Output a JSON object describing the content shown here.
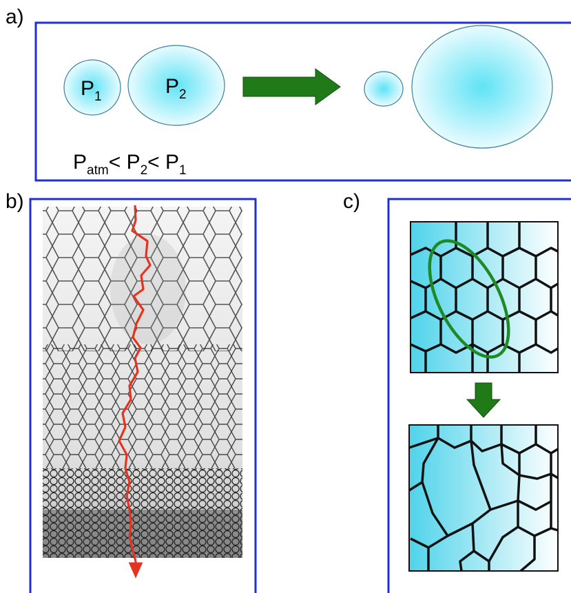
{
  "panels": {
    "a": {
      "label": "a)",
      "bubble1": {
        "base": "P",
        "sub": "1"
      },
      "bubble2": {
        "base": "P",
        "sub": "2"
      },
      "relation": {
        "p_atm": "P",
        "p_atm_sub": "atm",
        "lt1": "< ",
        "p2": "P",
        "p2_sub": "2",
        "lt2": "< ",
        "p1": "P",
        "p1_sub": "1"
      },
      "colors": {
        "frame": "#1f2fd6",
        "bubble": "#6fe3f5",
        "arrow": "#1f7a17"
      }
    },
    "b": {
      "label": "b)",
      "colors": {
        "frame": "#1f2fd6",
        "path": "#e53320"
      }
    },
    "c": {
      "label": "c)",
      "colors": {
        "frame": "#1f2fd6",
        "ellipse": "#1f8a25",
        "arrow": "#1f7a17",
        "cell_fill": "#5fd8ee"
      }
    }
  }
}
